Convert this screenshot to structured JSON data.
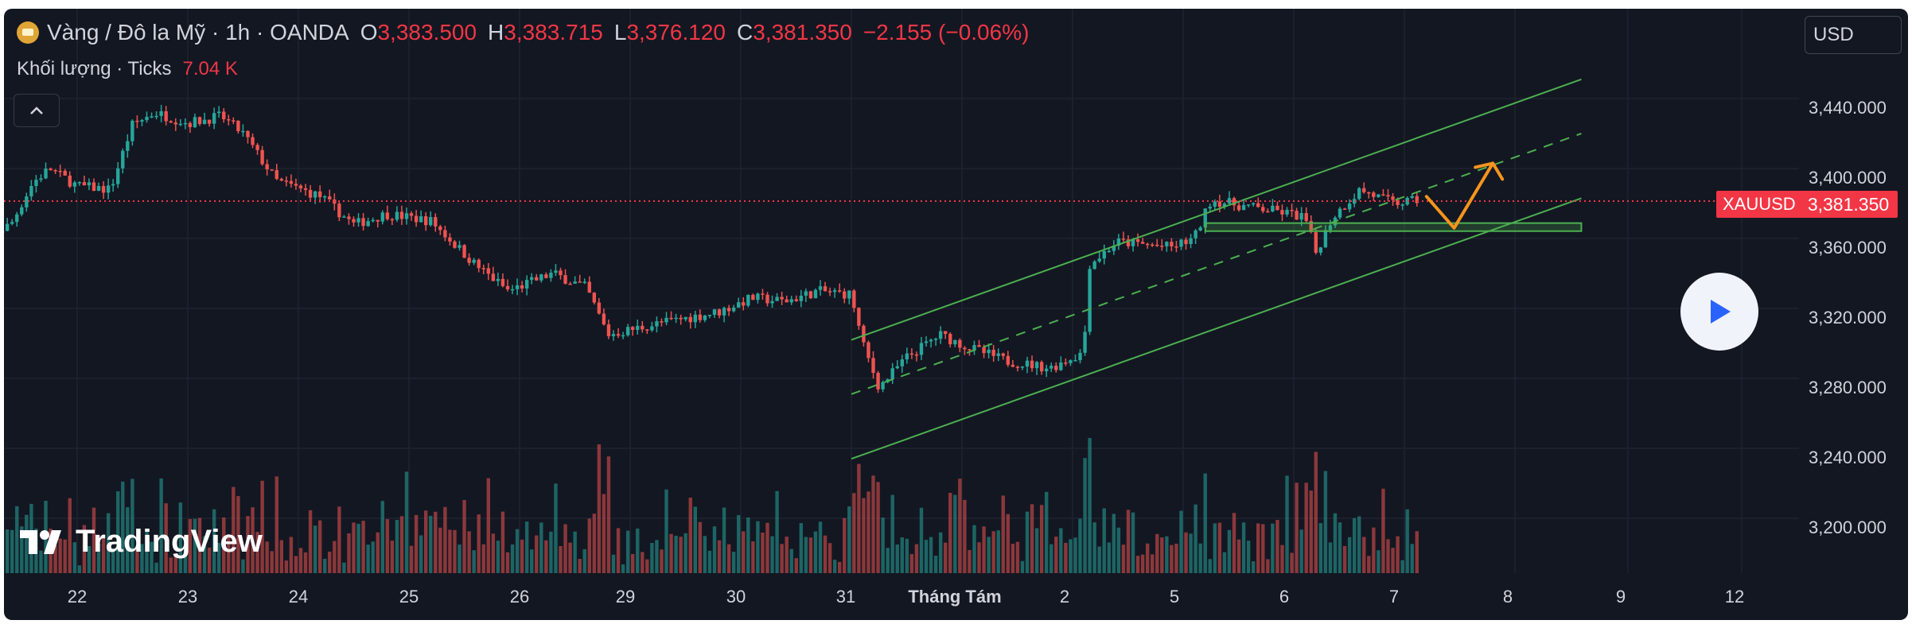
{
  "header": {
    "title": "Vàng / Đô la Mỹ · 1h · OANDA",
    "ohlc": [
      {
        "k": "O",
        "v": "3,383.500"
      },
      {
        "k": "H",
        "v": "3,383.715"
      },
      {
        "k": "L",
        "v": "3,376.120"
      },
      {
        "k": "C",
        "v": "3,381.350"
      }
    ],
    "change": "−2.155 (−0.06%)",
    "volume_label": "Khối lượng · Ticks",
    "volume_value": "7.04 K"
  },
  "currency_button": "USD",
  "collapse_icon": "chevron-up-icon",
  "play_icon": "play-icon",
  "logo_text": "TradingView",
  "symbol_tag": "XAUUSD",
  "price_tag": "3,381.350",
  "colors": {
    "up": "#26a69a",
    "down": "#ef5350",
    "channel": "#4caf50",
    "arrow": "#f7941d",
    "last_price": "#f23645"
  },
  "chart_data": {
    "type": "candlestick",
    "symbol": "XAUUSD",
    "interval": "1h",
    "last_price": 3381.35,
    "y_axis": {
      "range": [
        3170,
        3470
      ],
      "ticks": [
        "3,440.000",
        "3,400.000",
        "3,360.000",
        "3,320.000",
        "3,280.000",
        "3,240.000",
        "3,200.000"
      ]
    },
    "x_axis": {
      "ticks": [
        "22",
        "23",
        "24",
        "25",
        "26",
        "29",
        "30",
        "31",
        "Tháng Tám",
        "2",
        "5",
        "6",
        "7",
        "8",
        "9",
        "12"
      ],
      "bold_ticks": [
        "Tháng Tám"
      ]
    },
    "price_path": [
      {
        "d": 0,
        "p": 3355
      },
      {
        "d": 0.4,
        "p": 3368
      },
      {
        "d": 0.6,
        "p": 3392
      },
      {
        "d": 0.75,
        "p": 3400
      },
      {
        "d": 1.0,
        "p": 3390
      },
      {
        "d": 1.3,
        "p": 3388
      },
      {
        "d": 1.5,
        "p": 3425
      },
      {
        "d": 1.7,
        "p": 3432
      },
      {
        "d": 2.0,
        "p": 3426
      },
      {
        "d": 2.3,
        "p": 3430
      },
      {
        "d": 2.5,
        "p": 3420
      },
      {
        "d": 2.8,
        "p": 3393
      },
      {
        "d": 3.2,
        "p": 3384
      },
      {
        "d": 3.5,
        "p": 3368
      },
      {
        "d": 3.8,
        "p": 3374
      },
      {
        "d": 4.2,
        "p": 3370
      },
      {
        "d": 4.6,
        "p": 3345
      },
      {
        "d": 4.9,
        "p": 3330
      },
      {
        "d": 5.3,
        "p": 3340
      },
      {
        "d": 5.6,
        "p": 3332
      },
      {
        "d": 5.8,
        "p": 3305
      },
      {
        "d": 6.3,
        "p": 3312
      },
      {
        "d": 6.8,
        "p": 3318
      },
      {
        "d": 7.1,
        "p": 3326
      },
      {
        "d": 7.4,
        "p": 3324
      },
      {
        "d": 7.7,
        "p": 3330
      },
      {
        "d": 8.0,
        "p": 3328
      },
      {
        "d": 8.1,
        "p": 3300
      },
      {
        "d": 8.25,
        "p": 3275
      },
      {
        "d": 8.5,
        "p": 3292
      },
      {
        "d": 8.8,
        "p": 3305
      },
      {
        "d": 9.05,
        "p": 3298
      },
      {
        "d": 9.4,
        "p": 3290
      },
      {
        "d": 9.8,
        "p": 3286
      },
      {
        "d": 10.1,
        "p": 3295
      },
      {
        "d": 10.15,
        "p": 3345
      },
      {
        "d": 10.4,
        "p": 3358
      },
      {
        "d": 10.9,
        "p": 3355
      },
      {
        "d": 11.1,
        "p": 3360
      },
      {
        "d": 11.25,
        "p": 3382
      },
      {
        "d": 11.6,
        "p": 3378
      },
      {
        "d": 11.9,
        "p": 3375
      },
      {
        "d": 12.1,
        "p": 3372
      },
      {
        "d": 12.2,
        "p": 3352
      },
      {
        "d": 12.35,
        "p": 3372
      },
      {
        "d": 12.6,
        "p": 3388
      },
      {
        "d": 12.9,
        "p": 3380
      },
      {
        "d": 13.15,
        "p": 3382
      }
    ],
    "channel": {
      "upper": [
        {
          "d": 8.0,
          "p": 3302
        },
        {
          "d": 14.6,
          "p": 3451
        }
      ],
      "middle": [
        {
          "d": 8.0,
          "p": 3271
        },
        {
          "d": 14.6,
          "p": 3420
        }
      ],
      "lower": [
        {
          "d": 8.0,
          "p": 3234
        },
        {
          "d": 14.6,
          "p": 3383
        }
      ],
      "support_zone": [
        {
          "d": 11.2,
          "p": 3368.8
        },
        {
          "d": 14.6,
          "p": 3364.2
        }
      ]
    },
    "projection_arrow": [
      {
        "d": 13.2,
        "p": 3384
      },
      {
        "d": 13.45,
        "p": 3366
      },
      {
        "d": 13.8,
        "p": 3403
      }
    ]
  }
}
